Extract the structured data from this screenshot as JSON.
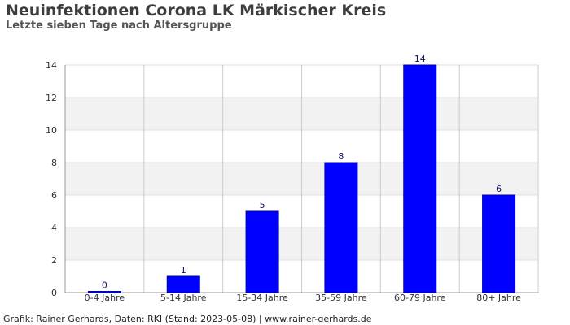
{
  "header": {
    "title": "Neuinfektionen Corona LK Märkischer Kreis",
    "subtitle": "Letzte sieben Tage nach Altersgruppe"
  },
  "footer": {
    "text": "Grafik: Rainer Gerhards, Daten: RKI (Stand: 2023-05-08) | www.rainer-gerhards.de"
  },
  "chart_data": {
    "type": "bar",
    "title": "Neuinfektionen Corona LK Märkischer Kreis",
    "subtitle": "Letzte sieben Tage nach Altersgruppe",
    "categories": [
      "0-4 Jahre",
      "5-14 Jahre",
      "15-34 Jahre",
      "35-59 Jahre",
      "60-79 Jahre",
      "80+ Jahre"
    ],
    "values": [
      0,
      1,
      5,
      8,
      14,
      6
    ],
    "xlabel": "",
    "ylabel": "",
    "ylim": [
      0,
      14
    ],
    "yticks": [
      0,
      2,
      4,
      6,
      8,
      10,
      12,
      14
    ],
    "grid": true,
    "bar_color": "#0000ff",
    "band_color": "#f2f2f2",
    "data_labels": true
  }
}
